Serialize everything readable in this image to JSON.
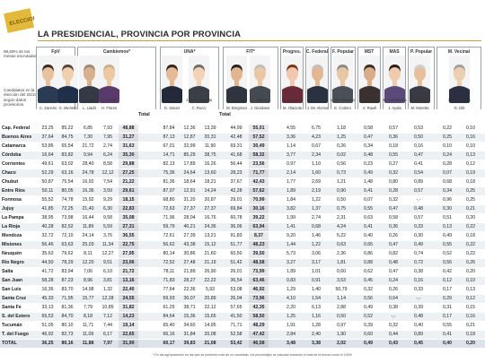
{
  "header": {
    "logo_text": "ELECCIONES 2015",
    "title": "LA PRESIDENCIAL, PROVINCIA POR PROVINCIA"
  },
  "sidebar": {
    "note1": "98,69% de las mesas escrutadas",
    "note2": "Candidatos en la elección del 25/10 según datos provisorios"
  },
  "groups": [
    {
      "label": "FpV"
    },
    {
      "label": "Cambiemos*"
    },
    {
      "label": "UNA*"
    },
    {
      "label": "FIT*"
    },
    {
      "label": "Progres."
    },
    {
      "label": "C. Federal"
    },
    {
      "label": "F. Popular"
    },
    {
      "label": "MST"
    },
    {
      "label": "MAS"
    },
    {
      "label": "P. Popular"
    },
    {
      "label": "M. Vecinal"
    }
  ],
  "candidates_top": [
    "D. Scioli",
    "M. Macri",
    "E. Sanz",
    "E. Carrió",
    "S. Massa",
    "J. M. de la Sota",
    "N. Del Caño",
    "J. Altamira",
    "M. Stolbizer",
    "A. R. Saá",
    "V. De Gennaro",
    "A. Bodart",
    "M. Castañeira",
    "M. Heller",
    "R. Albarracín"
  ],
  "candidates_bottom": [
    "C. Zannini",
    "G. Michetti",
    "L. Lladó",
    "H. Flores",
    "G. Sáenz",
    "C. Rucci",
    "M. Bregman",
    "J. Giordano",
    "M. Olaizola",
    "J. De Alonso",
    "E. Codoni",
    "V. Ripoll",
    "J. Ayala",
    "M. Moretta",
    "G. Dib"
  ],
  "total_label": "Total",
  "rows": [
    {
      "prov": "Cap. Federal",
      "v": [
        "23,25",
        "85,22",
        "6,85",
        "7,93",
        "48,88",
        "87,84",
        "12,36",
        "13,39",
        "44,99",
        "55,01",
        "4,55",
        "6,75",
        "1,18",
        "0,58",
        "0,57",
        "0,53",
        "0,22",
        "0,10"
      ]
    },
    {
      "prov": "Buenos Aires",
      "v": [
        "37,64",
        "84,75",
        "7,30",
        "7,95",
        "31,27",
        "87,13",
        "12,87",
        "20,31",
        "42,48",
        "57,52",
        "3,36",
        "4,23",
        "1,25",
        "0,47",
        "0,36",
        "0,50",
        "0,25",
        "0,16"
      ]
    },
    {
      "prov": "Catamarca",
      "v": [
        "53,86",
        "65,54",
        "21,72",
        "2,74",
        "31,63",
        "67,01",
        "32,99",
        "11,90",
        "69,31",
        "30,49",
        "1,14",
        "0,67",
        "0,26",
        "0,34",
        "0,18",
        "0,16",
        "0,10",
        "0,10"
      ]
    },
    {
      "prov": "Córdoba",
      "v": [
        "16,64",
        "83,82",
        "9,94",
        "6,24",
        "35,30",
        "14,71",
        "85,29",
        "38,75",
        "41,68",
        "58,32",
        "3,77",
        "2,34",
        "0,02",
        "0,48",
        "0,55",
        "0,47",
        "0,24",
        "0,13"
      ]
    },
    {
      "prov": "Corrientes",
      "v": [
        "49,61",
        "63,02",
        "28,40",
        "8,58",
        "29,88",
        "82,13",
        "17,89",
        "16,26",
        "56,44",
        "23,56",
        "0,97",
        "1,10",
        "0,56",
        "0,23",
        "0,27",
        "0,41",
        "0,28",
        "0,12"
      ]
    },
    {
      "prov": "Chaco",
      "v": [
        "52,29",
        "63,16",
        "24,78",
        "12,12",
        "27,25",
        "75,36",
        "24,64",
        "13,60",
        "28,23",
        "71,77",
        "2,14",
        "1,60",
        "0,73",
        "0,49",
        "0,32",
        "0,54",
        "0,07",
        "0,19"
      ]
    },
    {
      "prov": "Chubut",
      "v": [
        "50,87",
        "75,54",
        "16,92",
        "7,54",
        "21,22",
        "81,36",
        "18,64",
        "18,21",
        "37,67",
        "42,43",
        "1,77",
        "2,69",
        "1,21",
        "1,48",
        "0,80",
        "0,89",
        "0,68",
        "0,18"
      ]
    },
    {
      "prov": "Entre Ríos",
      "v": [
        "50,11",
        "80,05",
        "16,36",
        "3,59",
        "29,61",
        "87,07",
        "12,91",
        "14,24",
        "42,28",
        "57,62",
        "1,89",
        "2,19",
        "0,90",
        "0,41",
        "0,28",
        "0,57",
        "0,34",
        "0,25"
      ]
    },
    {
      "prov": "Formosa",
      "v": [
        "55,52",
        "74,78",
        "15,92",
        "9,29",
        "18,15",
        "68,80",
        "31,20",
        "20,87",
        "29,01",
        "70,99",
        "1,84",
        "1,22",
        "0,50",
        "0,07",
        "0,32",
        "-,-",
        "0,96",
        "0,25"
      ]
    },
    {
      "prov": "Jujuy",
      "v": [
        "41,85",
        "72,25",
        "21,40",
        "6,30",
        "22,83",
        "72,63",
        "27,37",
        "27,37",
        "69,84",
        "30,16",
        "3,82",
        "1,37",
        "0,75",
        "0,55",
        "0,47",
        "0,48",
        "0,30",
        "0,21"
      ]
    },
    {
      "prov": "La Pampa",
      "v": [
        "38,95",
        "73,98",
        "16,44",
        "9,58",
        "35,08",
        "71,96",
        "28,04",
        "16,76",
        "60,78",
        "39,22",
        "1,99",
        "2,74",
        "2,31",
        "0,63",
        "0,58",
        "0,57",
        "0,51",
        "0,20"
      ]
    },
    {
      "prov": "La Rioja",
      "v": [
        "40,28",
        "82,52",
        "11,89",
        "5,59",
        "27,31",
        "59,79",
        "40,21",
        "24,36",
        "36,06",
        "63,94",
        "1,41",
        "0,68",
        "4,24",
        "0,41",
        "0,36",
        "0,33",
        "0,13",
        "0,22"
      ]
    },
    {
      "prov": "Mendoza",
      "v": [
        "32,72",
        "72,10",
        "24,14",
        "3,76",
        "36,55",
        "72,61",
        "27,39",
        "13,21",
        "91,83",
        "8,37",
        "9,20",
        "1,46",
        "5,22",
        "0,40",
        "0,26",
        "0,30",
        "0,49",
        "0,18"
      ]
    },
    {
      "prov": "Misiones",
      "v": [
        "56,46",
        "63,63",
        "25,03",
        "11,34",
        "22,75",
        "56,62",
        "43,38",
        "15,12",
        "51,77",
        "48,23",
        "1,44",
        "1,22",
        "0,63",
        "0,65",
        "0,47",
        "0,49",
        "0,55",
        "0,22"
      ]
    },
    {
      "prov": "Neuquén",
      "v": [
        "35,63",
        "79,62",
        "8,11",
        "12,27",
        "27,95",
        "80,14",
        "30,86",
        "21,60",
        "60,50",
        "39,50",
        "5,73",
        "3,06",
        "2,36",
        "0,86",
        "0,82",
        "0,74",
        "0,52",
        "0,22"
      ]
    },
    {
      "prov": "Río Negro",
      "v": [
        "44,50",
        "78,29",
        "12,20",
        "9,51",
        "23,06",
        "72,52",
        "27,48",
        "21,19",
        "51,42",
        "48,58",
        "3,27",
        "3,17",
        "1,81",
        "0,88",
        "0,48",
        "0,72",
        "0,56",
        "0,26"
      ]
    },
    {
      "prov": "Salta",
      "v": [
        "41,72",
        "83,94",
        "7,06",
        "6,10",
        "21,72",
        "78,11",
        "21,89",
        "26,90",
        "26,01",
        "73,99",
        "1,89",
        "1,01",
        "0,60",
        "0,62",
        "0,47",
        "0,38",
        "0,42",
        "0,20"
      ]
    },
    {
      "prov": "San Juan",
      "v": [
        "58,28",
        "87,23",
        "8,96",
        "3,81",
        "13,16",
        "71,83",
        "28,27",
        "22,22",
        "36,54",
        "63,46",
        "0,83",
        "0,91",
        "3,53",
        "0,45",
        "0,24",
        "0,16",
        "0,12",
        "0,10"
      ]
    },
    {
      "prov": "San Luis",
      "v": [
        "16,36",
        "83,70",
        "14,98",
        "1,32",
        "22,40",
        "77,64",
        "22,36",
        "5,93",
        "53,08",
        "46,92",
        "1,29",
        "1,40",
        "50,79",
        "0,32",
        "0,26",
        "0,33",
        "0,17",
        "0,13"
      ]
    },
    {
      "prov": "Santa Cruz",
      "v": [
        "45,33",
        "71,95",
        "15,77",
        "12,28",
        "24,55",
        "69,93",
        "30,07",
        "20,89",
        "26,04",
        "73,96",
        "4,10",
        "1,54",
        "1,14",
        "0,56",
        "0,64",
        "-,-",
        "0,29",
        "0,12"
      ]
    },
    {
      "prov": "Santa Fe",
      "v": [
        "33,13",
        "81,36",
        "7,79",
        "10,85",
        "31,82",
        "61,29",
        "38,71",
        "22,12",
        "57,65",
        "42,35",
        "2,20",
        "6,13",
        "2,88",
        "0,49",
        "0,38",
        "0,39",
        "0,31",
        "0,15"
      ]
    },
    {
      "prov": "S. del Estero",
      "v": [
        "65,53",
        "84,70",
        "8,18",
        "7,12",
        "14,23",
        "84,64",
        "15,36",
        "15,65",
        "41,50",
        "58,50",
        "1,25",
        "1,16",
        "0,50",
        "0,52",
        "-,-",
        "0,48",
        "0,17",
        "0,16"
      ]
    },
    {
      "prov": "Tucumán",
      "v": [
        "51,05",
        "80,10",
        "11,71",
        "7,44",
        "19,14",
        "65,40",
        "34,60",
        "14,95",
        "71,71",
        "48,29",
        "1,91",
        "1,28",
        "0,97",
        "0,39",
        "0,32",
        "0,40",
        "0,55",
        "0,21"
      ]
    },
    {
      "prov": "T. del Fuego",
      "v": [
        "46,92",
        "82,73",
        "11,09",
        "6,17",
        "22,65",
        "66,16",
        "31,84",
        "20,08",
        "52,58",
        "47,42",
        "2,84",
        "2,40",
        "1,90",
        "0,60",
        "0,44",
        "0,89",
        "0,41",
        "0,18"
      ]
    },
    {
      "prov": "TOTAL",
      "v": [
        "36,25",
        "80,16",
        "11,88",
        "7,97",
        "31,90",
        "60,17",
        "39,83",
        "21,08",
        "53,42",
        "46,58",
        "3,48",
        "3,38",
        "2,02",
        "0,49",
        "0,43",
        "0,45",
        "0,40",
        "0,20"
      ]
    }
  ],
  "footnote": "* En las agrupaciones en las que se presentó más de un candidato, los porcentajes se calculan tomando el total de la fuerza como el 100%"
}
